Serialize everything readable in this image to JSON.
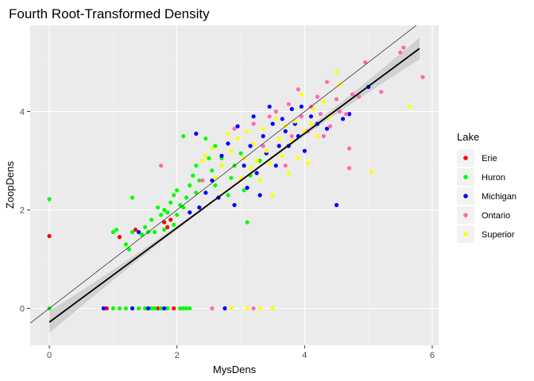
{
  "chart_data": {
    "type": "scatter",
    "title": "Fourth Root-Transformed Density",
    "xlabel": "MysDens",
    "ylabel": "ZoopDens",
    "xlim": [
      -0.3,
      6.1
    ],
    "ylim": [
      -0.75,
      5.75
    ],
    "x_ticks": [
      0,
      2,
      4,
      6
    ],
    "y_ticks": [
      0,
      2,
      4
    ],
    "grid": true,
    "legend": {
      "title": "Lake",
      "placement": "right"
    },
    "reference_line": {
      "slope": 1,
      "intercept": 0,
      "color": "#000000"
    },
    "fit_line": {
      "x": [
        0,
        5.8
      ],
      "y": [
        -0.28,
        5.28
      ],
      "se_band": [
        0.02,
        0.22
      ],
      "color": "#000000",
      "band_color": "#bebebe"
    },
    "series": [
      {
        "name": "Erie",
        "color": "#ff0000",
        "points": [
          [
            0.0,
            1.47
          ],
          [
            1.1,
            1.45
          ],
          [
            1.35,
            1.6
          ],
          [
            1.8,
            1.75
          ],
          [
            1.85,
            1.65
          ],
          [
            1.9,
            1.8
          ],
          [
            0.9,
            0.0
          ],
          [
            1.7,
            0.0
          ],
          [
            1.95,
            0.0
          ]
        ]
      },
      {
        "name": "Huron",
        "color": "#00ff00",
        "points": [
          [
            0.0,
            2.22
          ],
          [
            0.0,
            0.0
          ],
          [
            1.0,
            1.55
          ],
          [
            1.05,
            1.6
          ],
          [
            1.2,
            1.3
          ],
          [
            1.25,
            1.2
          ],
          [
            1.3,
            1.55
          ],
          [
            1.3,
            2.25
          ],
          [
            1.45,
            1.5
          ],
          [
            1.5,
            1.65
          ],
          [
            1.55,
            1.55
          ],
          [
            1.6,
            1.8
          ],
          [
            1.65,
            1.55
          ],
          [
            1.7,
            2.05
          ],
          [
            1.75,
            1.9
          ],
          [
            1.8,
            2.0
          ],
          [
            1.8,
            1.6
          ],
          [
            1.85,
            1.95
          ],
          [
            1.9,
            2.15
          ],
          [
            1.95,
            1.7
          ],
          [
            1.95,
            2.3
          ],
          [
            2.0,
            1.9
          ],
          [
            2.0,
            2.4
          ],
          [
            2.05,
            2.1
          ],
          [
            2.1,
            2.05
          ],
          [
            2.1,
            3.5
          ],
          [
            2.15,
            2.25
          ],
          [
            2.2,
            2.5
          ],
          [
            2.25,
            2.7
          ],
          [
            2.3,
            2.35
          ],
          [
            2.3,
            2.9
          ],
          [
            2.35,
            2.6
          ],
          [
            2.4,
            3.0
          ],
          [
            2.45,
            3.45
          ],
          [
            2.5,
            3.05
          ],
          [
            2.55,
            2.8
          ],
          [
            2.6,
            3.3
          ],
          [
            2.6,
            2.5
          ],
          [
            2.7,
            3.05
          ],
          [
            2.8,
            2.3
          ],
          [
            2.85,
            2.65
          ],
          [
            2.9,
            2.9
          ],
          [
            3.0,
            3.15
          ],
          [
            3.05,
            2.4
          ],
          [
            3.1,
            1.75
          ],
          [
            3.15,
            2.7
          ],
          [
            3.3,
            3.0
          ],
          [
            1.0,
            0.0
          ],
          [
            1.1,
            0.0
          ],
          [
            1.2,
            0.0
          ],
          [
            1.3,
            0.0
          ],
          [
            1.4,
            0.0
          ],
          [
            1.5,
            0.0
          ],
          [
            1.6,
            0.0
          ],
          [
            1.65,
            0.0
          ],
          [
            1.75,
            0.0
          ],
          [
            1.85,
            0.0
          ],
          [
            2.05,
            0.0
          ],
          [
            2.1,
            0.0
          ],
          [
            2.15,
            0.0
          ],
          [
            2.2,
            0.0
          ]
        ]
      },
      {
        "name": "Michigan",
        "color": "#0000ff",
        "points": [
          [
            0.85,
            0.0
          ],
          [
            1.3,
            0.0
          ],
          [
            1.4,
            1.55
          ],
          [
            1.55,
            0.0
          ],
          [
            1.8,
            0.0
          ],
          [
            2.2,
            1.95
          ],
          [
            2.3,
            3.55
          ],
          [
            2.35,
            2.05
          ],
          [
            2.45,
            2.35
          ],
          [
            2.55,
            2.6
          ],
          [
            2.65,
            2.25
          ],
          [
            2.7,
            3.1
          ],
          [
            2.75,
            0.0
          ],
          [
            2.8,
            3.35
          ],
          [
            2.9,
            2.1
          ],
          [
            2.95,
            3.7
          ],
          [
            3.05,
            2.9
          ],
          [
            3.1,
            2.45
          ],
          [
            3.15,
            3.3
          ],
          [
            3.2,
            3.9
          ],
          [
            3.25,
            2.75
          ],
          [
            3.3,
            2.3
          ],
          [
            3.35,
            3.5
          ],
          [
            3.4,
            3.15
          ],
          [
            3.45,
            4.1
          ],
          [
            3.5,
            3.75
          ],
          [
            3.55,
            2.9
          ],
          [
            3.6,
            3.3
          ],
          [
            3.65,
            3.85
          ],
          [
            3.7,
            3.6
          ],
          [
            3.75,
            3.3
          ],
          [
            3.8,
            4.05
          ],
          [
            3.85,
            3.75
          ],
          [
            3.9,
            3.5
          ],
          [
            3.95,
            4.1
          ],
          [
            4.0,
            3.2
          ],
          [
            4.1,
            3.9
          ],
          [
            4.2,
            3.75
          ],
          [
            4.35,
            3.65
          ],
          [
            4.5,
            2.1
          ],
          [
            4.6,
            3.85
          ],
          [
            4.7,
            3.95
          ],
          [
            5.0,
            4.5
          ]
        ]
      },
      {
        "name": "Ontario",
        "color": "#ff69b4",
        "points": [
          [
            1.75,
            2.9
          ],
          [
            2.4,
            2.6
          ],
          [
            2.55,
            0.0
          ],
          [
            2.9,
            3.65
          ],
          [
            3.2,
            3.75
          ],
          [
            3.35,
            3.3
          ],
          [
            3.45,
            3.9
          ],
          [
            3.55,
            4.0
          ],
          [
            3.7,
            2.9
          ],
          [
            3.75,
            4.15
          ],
          [
            3.8,
            3.5
          ],
          [
            3.9,
            4.45
          ],
          [
            3.95,
            3.9
          ],
          [
            4.05,
            3.6
          ],
          [
            4.1,
            4.1
          ],
          [
            4.2,
            4.3
          ],
          [
            4.25,
            3.95
          ],
          [
            4.3,
            3.5
          ],
          [
            4.35,
            4.6
          ],
          [
            4.4,
            3.7
          ],
          [
            4.5,
            4.25
          ],
          [
            4.55,
            4.0
          ],
          [
            4.65,
            3.95
          ],
          [
            4.7,
            3.25
          ],
          [
            4.75,
            4.35
          ],
          [
            4.85,
            4.3
          ],
          [
            4.95,
            5.0
          ],
          [
            4.7,
            2.85
          ],
          [
            5.2,
            4.4
          ],
          [
            5.5,
            5.2
          ],
          [
            5.55,
            5.3
          ],
          [
            5.85,
            4.7
          ],
          [
            3.2,
            0.0
          ]
        ]
      },
      {
        "name": "Superior",
        "color": "#ffff00",
        "points": [
          [
            2.45,
            3.1
          ],
          [
            2.55,
            3.25
          ],
          [
            2.6,
            2.65
          ],
          [
            2.7,
            2.9
          ],
          [
            2.8,
            3.55
          ],
          [
            2.85,
            3.2
          ],
          [
            2.95,
            3.45
          ],
          [
            3.0,
            2.65
          ],
          [
            3.05,
            3.05
          ],
          [
            3.1,
            3.6
          ],
          [
            3.15,
            2.85
          ],
          [
            3.2,
            3.35
          ],
          [
            3.25,
            3.0
          ],
          [
            3.3,
            2.6
          ],
          [
            3.35,
            3.65
          ],
          [
            3.4,
            3.2
          ],
          [
            3.45,
            2.95
          ],
          [
            3.5,
            2.3
          ],
          [
            3.55,
            3.85
          ],
          [
            3.6,
            3.45
          ],
          [
            3.65,
            3.1
          ],
          [
            3.7,
            3.7
          ],
          [
            3.75,
            2.75
          ],
          [
            3.8,
            3.4
          ],
          [
            3.85,
            3.8
          ],
          [
            3.9,
            3.05
          ],
          [
            3.95,
            4.35
          ],
          [
            4.0,
            3.6
          ],
          [
            4.05,
            2.95
          ],
          [
            4.1,
            3.75
          ],
          [
            4.15,
            4.05
          ],
          [
            4.2,
            3.5
          ],
          [
            4.3,
            4.2
          ],
          [
            4.4,
            3.9
          ],
          [
            4.5,
            4.8
          ],
          [
            4.55,
            4.55
          ],
          [
            5.05,
            2.78
          ],
          [
            5.65,
            4.1
          ],
          [
            2.4,
            3.0
          ],
          [
            3.5,
            0.0
          ],
          [
            3.3,
            0.0
          ],
          [
            3.1,
            0.0
          ],
          [
            2.85,
            0.0
          ]
        ]
      }
    ]
  }
}
